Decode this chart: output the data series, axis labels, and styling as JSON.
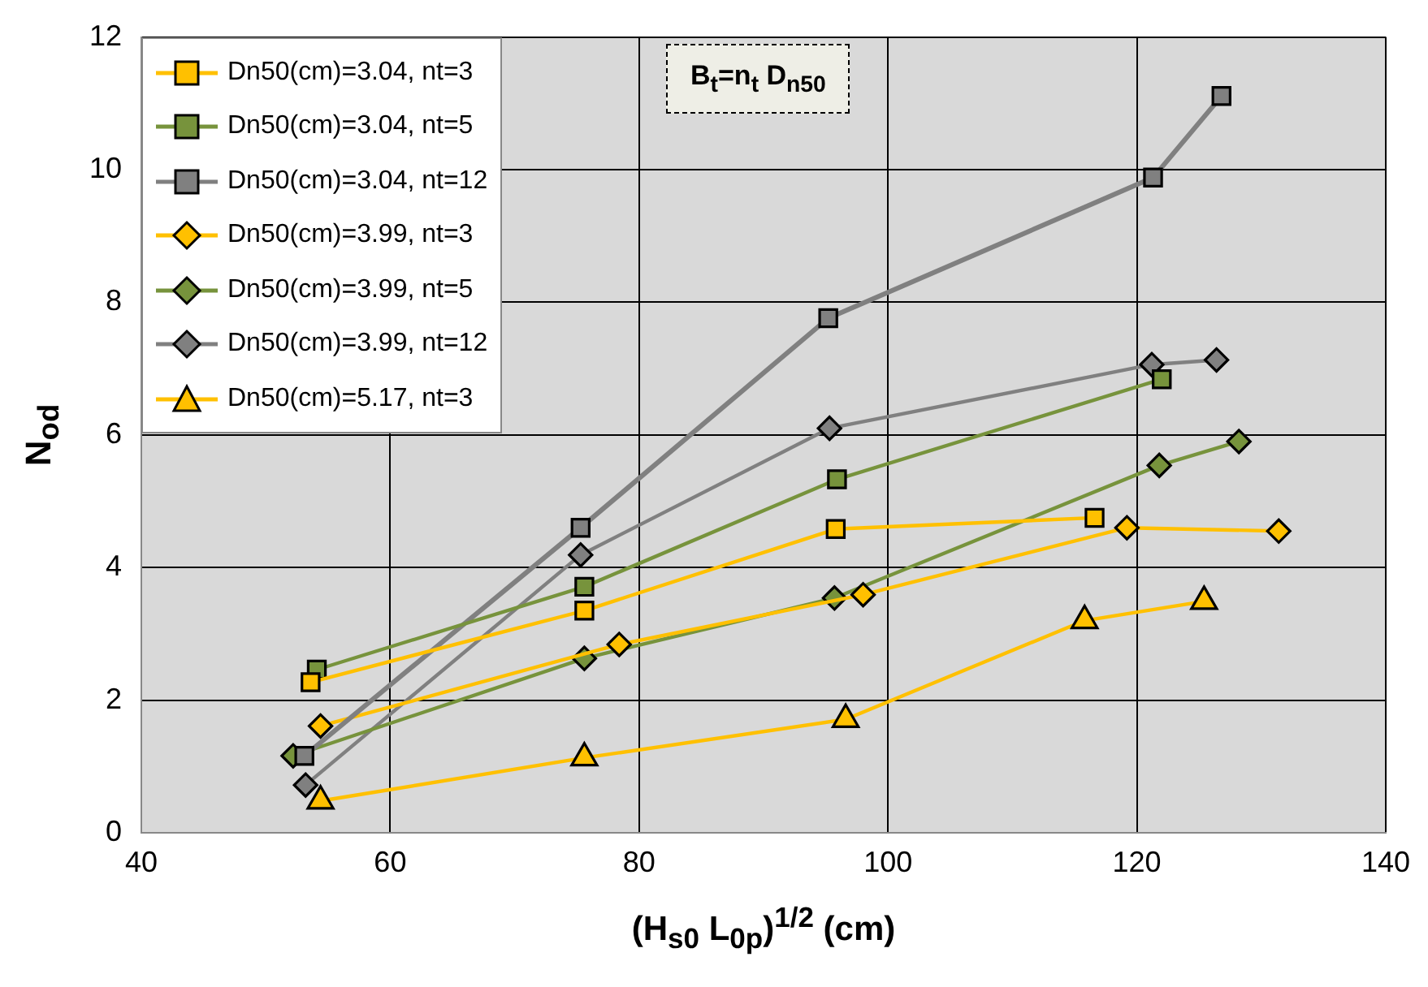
{
  "chart_data": {
    "type": "line",
    "xlabel": "(H$_{s0}$ L$_{0p}$)$^{1/2}$ (cm)",
    "ylabel": "N$_{od}$",
    "xlim": [
      40,
      140
    ],
    "xticks": [
      40,
      60,
      80,
      100,
      120,
      140
    ],
    "ylim": [
      0,
      12
    ],
    "yticks": [
      0,
      2,
      4,
      6,
      8,
      10,
      12
    ],
    "grid": true,
    "legend": "top left",
    "annotations": [
      "B$_{t}$=n$_{t}$ D$_{n50}$"
    ],
    "series": [
      {
        "name": "Dn50(cm)=3.04, nt=3",
        "color": "#ffc000",
        "marker": "square",
        "x": [
          53.6,
          75.6,
          95.8,
          116.6
        ],
        "values": [
          2.27,
          3.35,
          4.58,
          4.75
        ]
      },
      {
        "name": "Dn50(cm)=3.04, nt=5",
        "color": "#77933c",
        "marker": "square",
        "x": [
          54.1,
          75.6,
          95.9,
          122.0
        ],
        "values": [
          2.46,
          3.71,
          5.33,
          6.84
        ]
      },
      {
        "name": "Dn50(cm)=3.04, nt=12",
        "color": "#808080",
        "marker": "square",
        "x": [
          53.1,
          75.3,
          95.2,
          121.3,
          126.8
        ],
        "values": [
          1.16,
          4.6,
          7.76,
          9.88,
          11.11
        ]
      },
      {
        "name": "Dn50(cm)=3.99, nt=3",
        "color": "#ffc000",
        "marker": "diamond",
        "x": [
          54.4,
          78.4,
          98.0,
          119.2,
          131.4
        ],
        "values": [
          1.61,
          2.84,
          3.59,
          4.6,
          4.55
        ]
      },
      {
        "name": "Dn50(cm)=3.99, nt=5",
        "color": "#77933c",
        "marker": "diamond",
        "x": [
          52.2,
          75.6,
          95.7,
          121.8,
          128.2
        ],
        "values": [
          1.16,
          2.63,
          3.54,
          5.54,
          5.9
        ]
      },
      {
        "name": "Dn50(cm)=3.99, nt=12",
        "color": "#808080",
        "marker": "diamond",
        "x": [
          53.2,
          75.3,
          95.3,
          121.2,
          126.4
        ],
        "values": [
          0.72,
          4.19,
          6.1,
          7.06,
          7.13
        ]
      },
      {
        "name": "Dn50(cm)=5.17, nt=3",
        "color": "#ffc000",
        "marker": "triangle",
        "x": [
          54.4,
          75.6,
          96.6,
          115.8,
          125.4
        ],
        "values": [
          0.48,
          1.13,
          1.71,
          3.2,
          3.49
        ]
      }
    ]
  }
}
